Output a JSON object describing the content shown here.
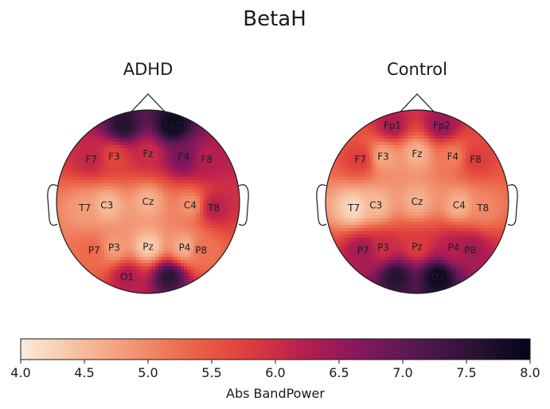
{
  "chart_data": {
    "type": "heatmap",
    "title": "BetaH",
    "colorbar": {
      "label": "Abs BandPower",
      "min": 4.0,
      "max": 8.0,
      "ticks": [
        "4.0",
        "4.5",
        "5.0",
        "5.5",
        "6.0",
        "6.5",
        "7.0",
        "7.5",
        "8.0"
      ],
      "colormap": [
        "#faebdd",
        "#f6c19f",
        "#f29472",
        "#ec6548",
        "#df3e3c",
        "#b61e50",
        "#84185d",
        "#55184f",
        "#2b1336",
        "#03051a"
      ]
    },
    "electrodes": [
      "Fp1",
      "Fp2",
      "F7",
      "F3",
      "Fz",
      "F4",
      "F8",
      "T7",
      "C3",
      "Cz",
      "C4",
      "T8",
      "P7",
      "P3",
      "Pz",
      "P4",
      "P8",
      "O1",
      "O2"
    ],
    "topomaps": [
      {
        "name": "ADHD",
        "values": {
          "Fp1": 7.6,
          "Fp2": 7.9,
          "F7": 6.1,
          "F3": 5.7,
          "Fz": 6.0,
          "F4": 6.8,
          "F8": 6.2,
          "T7": 4.8,
          "C3": 4.5,
          "Cz": 4.6,
          "C4": 4.9,
          "T8": 6.2,
          "P7": 5.3,
          "P3": 4.8,
          "Pz": 4.3,
          "P4": 4.6,
          "P8": 5.2,
          "O1": 6.3,
          "O2": 7.5
        }
      },
      {
        "name": "Control",
        "values": {
          "Fp1": 6.3,
          "Fp2": 6.5,
          "F7": 5.8,
          "F3": 4.7,
          "Fz": 4.6,
          "F4": 5.1,
          "F8": 5.8,
          "T7": 4.2,
          "C3": 4.5,
          "Cz": 4.6,
          "C4": 4.6,
          "T8": 5.0,
          "P7": 6.4,
          "P3": 6.0,
          "Pz": 5.8,
          "P4": 6.2,
          "P8": 6.4,
          "O1": 7.6,
          "O2": 7.9
        }
      }
    ]
  }
}
